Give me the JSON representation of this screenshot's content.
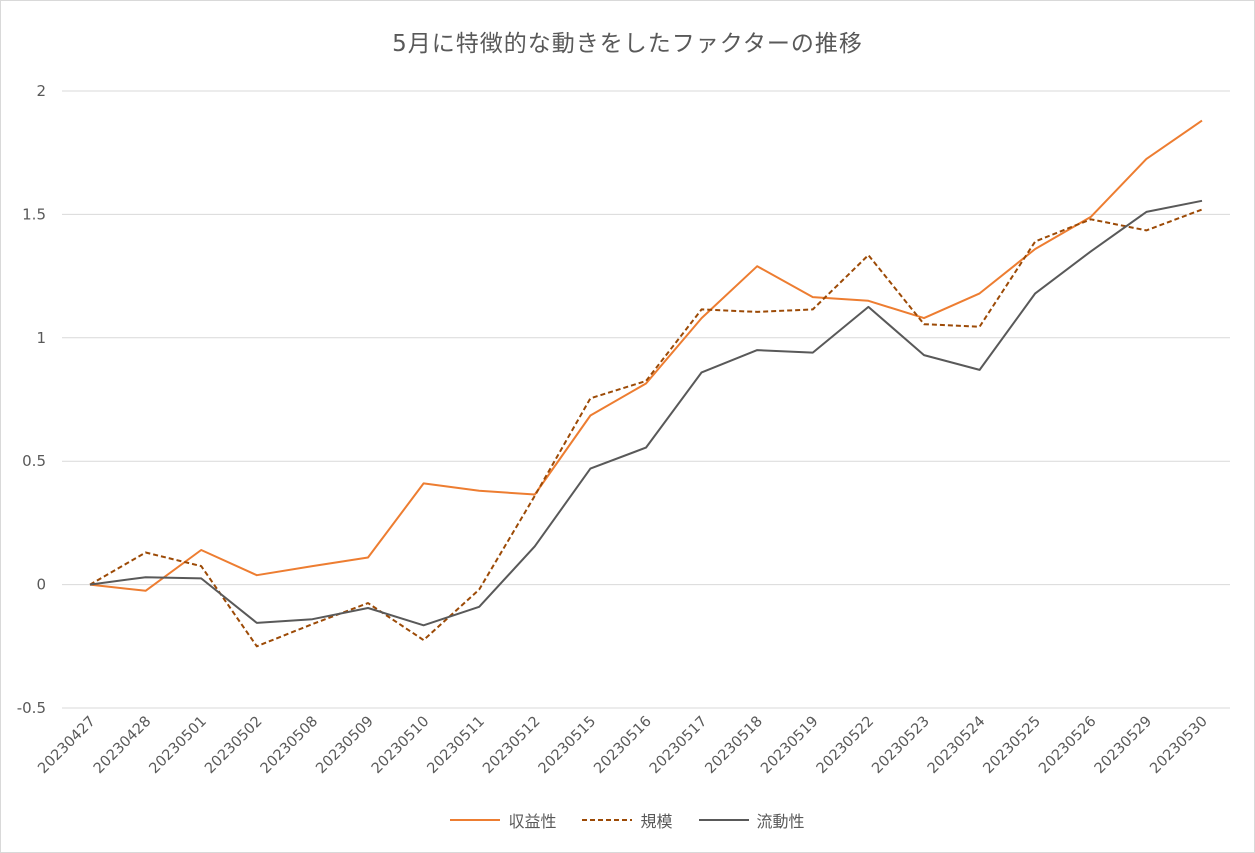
{
  "chart_data": {
    "type": "line",
    "title": "5月に特徴的な動きをしたファクターの推移",
    "xlabel": "",
    "ylabel": "",
    "ylim": [
      -0.5,
      2
    ],
    "yticks": [
      "2",
      "1.5",
      "1",
      "0.5",
      "0",
      "-0.5"
    ],
    "grid": true,
    "legend_position": "bottom",
    "categories": [
      "20230427",
      "20230428",
      "20230501",
      "20230502",
      "20230508",
      "20230509",
      "20230510",
      "20230511",
      "20230512",
      "20230515",
      "20230516",
      "20230517",
      "20230518",
      "20230519",
      "20230522",
      "20230523",
      "20230524",
      "20230525",
      "20230526",
      "20230529",
      "20230530"
    ],
    "series": [
      {
        "name": "収益性",
        "color": "#ed7d31",
        "dash": "solid",
        "values": [
          0,
          -0.025,
          0.14,
          0.038,
          0.075,
          0.11,
          0.41,
          0.38,
          0.365,
          0.685,
          0.815,
          1.08,
          1.29,
          1.165,
          1.15,
          1.08,
          1.18,
          1.36,
          1.49,
          1.725,
          1.88
        ]
      },
      {
        "name": "規模",
        "color": "#9c4a06",
        "dash": "dashed",
        "values": [
          0,
          0.13,
          0.075,
          -0.25,
          -0.16,
          -0.075,
          -0.225,
          -0.02,
          0.36,
          0.755,
          0.825,
          1.115,
          1.105,
          1.115,
          1.335,
          1.055,
          1.045,
          1.39,
          1.48,
          1.435,
          1.52
        ]
      },
      {
        "name": "流動性",
        "color": "#595959",
        "dash": "solid",
        "values": [
          0,
          0.03,
          0.025,
          -0.155,
          -0.14,
          -0.095,
          -0.165,
          -0.09,
          0.155,
          0.47,
          0.555,
          0.86,
          0.95,
          0.94,
          1.125,
          0.93,
          0.87,
          1.18,
          1.35,
          1.51,
          1.555
        ]
      }
    ]
  }
}
